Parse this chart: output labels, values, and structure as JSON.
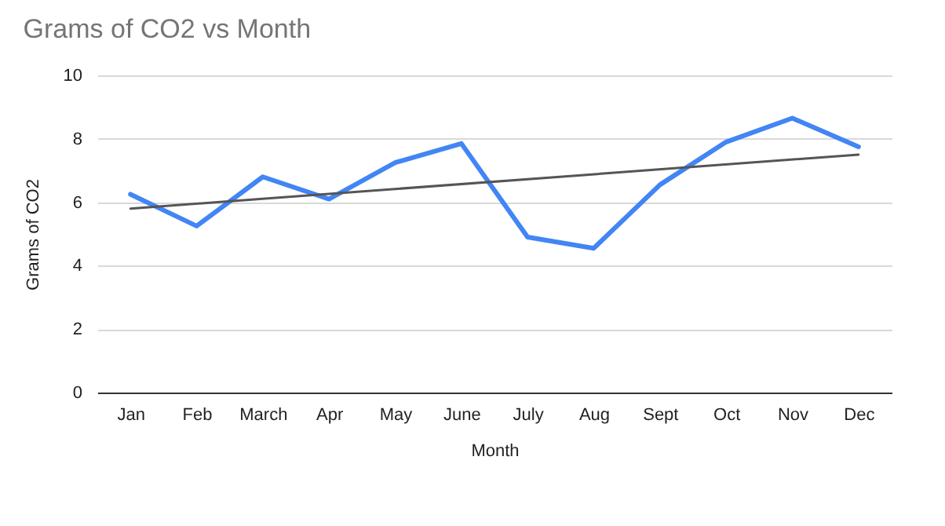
{
  "chart_data": {
    "type": "line",
    "title": "Grams of CO2 vs Month",
    "xlabel": "Month",
    "ylabel": "Grams of CO2",
    "categories": [
      "Jan",
      "Feb",
      "March",
      "Apr",
      "May",
      "June",
      "July",
      "Aug",
      "Sept",
      "Oct",
      "Nov",
      "Dec"
    ],
    "series": [
      {
        "color": "#4285f4",
        "values": [
          6.25,
          5.25,
          6.8,
          6.1,
          7.25,
          7.85,
          4.9,
          4.55,
          6.55,
          7.9,
          8.65,
          7.75
        ]
      },
      {
        "type": "line",
        "color": "#555555",
        "x": [
          "Jan",
          "Dec"
        ],
        "values": [
          5.8,
          7.5
        ]
      }
    ],
    "ylim": [
      0,
      10
    ],
    "yticks": [
      0,
      2,
      4,
      6,
      8,
      10
    ],
    "grid": "y",
    "legend": false
  }
}
